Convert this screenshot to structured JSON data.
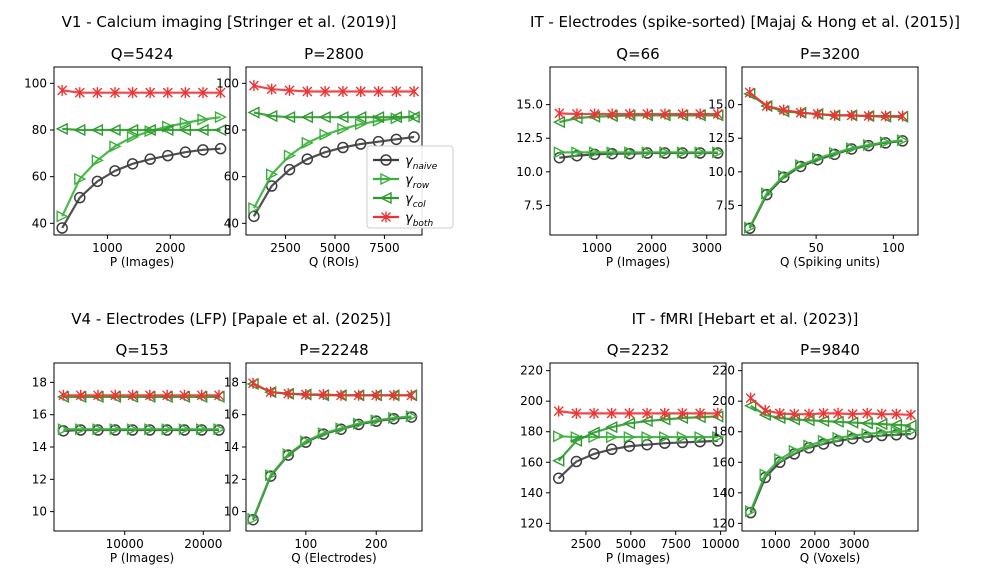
{
  "colors": {
    "naive": "#3d3d3d",
    "row": "#3cb03c",
    "col": "#2e9a2e",
    "both": "#ee3333",
    "axis": "#000000"
  },
  "legend": [
    {
      "key": "naive",
      "sym": "γ",
      "sub": "naive",
      "marker": "circle"
    },
    {
      "key": "row",
      "sym": "γ",
      "sub": "row",
      "marker": "tri-right"
    },
    {
      "key": "col",
      "sym": "γ",
      "sub": "col",
      "marker": "tri-left"
    },
    {
      "key": "both",
      "sym": "γ",
      "sub": "both",
      "marker": "x"
    }
  ],
  "chart_data": [
    {
      "type": "line",
      "group": "V1 - Calcium imaging [Stringer et al. (2019)]",
      "title": "Q=5424",
      "xlabel": "P (Images)",
      "xlim": [
        150,
        2950
      ],
      "ylim": [
        35,
        107
      ],
      "xticks": [
        1000,
        2000
      ],
      "yticks": [
        40,
        60,
        80,
        100
      ],
      "xtick_labels": [
        "1000",
        "2000"
      ],
      "ytick_labels": [
        "40",
        "60",
        "80",
        "100"
      ],
      "x": [
        280,
        560,
        840,
        1120,
        1400,
        1680,
        1960,
        2240,
        2520,
        2800
      ],
      "series": [
        {
          "name": "naive",
          "values": [
            38,
            51,
            58,
            62.5,
            65.5,
            67.5,
            69,
            70.5,
            71.5,
            72
          ]
        },
        {
          "name": "row",
          "values": [
            43,
            59,
            67,
            73,
            77,
            79.5,
            81.5,
            83,
            84.5,
            85.5
          ]
        },
        {
          "name": "col",
          "values": [
            80.5,
            80,
            80,
            80,
            80,
            80,
            80,
            80,
            80,
            80
          ]
        },
        {
          "name": "both",
          "values": [
            97,
            96,
            96,
            96,
            96,
            96,
            96,
            96,
            96,
            96
          ]
        }
      ]
    },
    {
      "type": "line",
      "group": "V1 - Calcium imaging [Stringer et al. (2019)]",
      "title": "P=2800",
      "xlabel": "Q (ROIs)",
      "xlim": [
        500,
        9400
      ],
      "ylim": [
        35,
        107
      ],
      "xticks": [
        2500,
        5000,
        7500
      ],
      "yticks": [
        40,
        60,
        80,
        100
      ],
      "xtick_labels": [
        "2500",
        "5000",
        "7500"
      ],
      "ytick_labels": [
        "40",
        "60",
        "80",
        "100"
      ],
      "x": [
        900,
        1800,
        2700,
        3600,
        4500,
        5400,
        6300,
        7200,
        8100,
        9000
      ],
      "series": [
        {
          "name": "naive",
          "values": [
            43,
            56,
            63,
            67.5,
            70.5,
            72.5,
            74,
            75,
            76,
            77
          ]
        },
        {
          "name": "row",
          "values": [
            46.5,
            61,
            69,
            74.5,
            78,
            80.5,
            82.5,
            84,
            85,
            86
          ]
        },
        {
          "name": "col",
          "values": [
            87.5,
            86,
            85.5,
            85.5,
            85.5,
            85.5,
            85.5,
            85.5,
            85.5,
            85.5
          ]
        },
        {
          "name": "both",
          "values": [
            99,
            97.5,
            97,
            96.5,
            96.5,
            96.5,
            96.5,
            96.5,
            96.5,
            96.5
          ]
        }
      ]
    },
    {
      "type": "line",
      "group": "IT - Electrodes (spike-sorted) [Majaj & Hong et al. (2015)]",
      "title": "Q=66",
      "xlabel": "P (Images)",
      "xlim": [
        150,
        3350
      ],
      "ylim": [
        5.3,
        17.8
      ],
      "xticks": [
        1000,
        2000,
        3000
      ],
      "yticks": [
        7.5,
        10,
        12.5,
        15
      ],
      "xtick_labels": [
        "1000",
        "2000",
        "3000"
      ],
      "ytick_labels": [
        "7.5",
        "10.0",
        "12.5",
        "15.0"
      ],
      "x": [
        320,
        640,
        960,
        1280,
        1600,
        1920,
        2240,
        2560,
        2880,
        3200
      ],
      "series": [
        {
          "name": "naive",
          "values": [
            11.05,
            11.2,
            11.3,
            11.35,
            11.35,
            11.4,
            11.4,
            11.4,
            11.4,
            11.4
          ]
        },
        {
          "name": "row",
          "values": [
            11.45,
            11.45,
            11.45,
            11.45,
            11.45,
            11.45,
            11.45,
            11.45,
            11.45,
            11.45
          ]
        },
        {
          "name": "col",
          "values": [
            13.7,
            14.0,
            14.1,
            14.15,
            14.2,
            14.2,
            14.2,
            14.2,
            14.2,
            14.2
          ]
        },
        {
          "name": "both",
          "values": [
            14.35,
            14.3,
            14.3,
            14.3,
            14.3,
            14.3,
            14.3,
            14.3,
            14.3,
            14.3
          ]
        }
      ]
    },
    {
      "type": "line",
      "group": "IT - Electrodes (spike-sorted) [Majaj & Hong et al. (2015)]",
      "title": "P=3200",
      "xlabel": "Q (Spiking units)",
      "xlim": [
        2,
        116
      ],
      "ylim": [
        5.3,
        17.8
      ],
      "xticks": [
        50,
        100
      ],
      "yticks": [
        7.5,
        10,
        12.5,
        15
      ],
      "xtick_labels": [
        "50",
        "100"
      ],
      "ytick_labels": [
        "7.5",
        "10.0",
        "12.5",
        "15.0"
      ],
      "x": [
        7,
        18,
        29,
        40,
        51,
        62,
        73,
        84,
        95,
        106
      ],
      "series": [
        {
          "name": "naive",
          "values": [
            5.8,
            8.3,
            9.6,
            10.4,
            10.9,
            11.3,
            11.7,
            11.95,
            12.15,
            12.3
          ]
        },
        {
          "name": "row",
          "values": [
            5.85,
            8.4,
            9.7,
            10.5,
            11.0,
            11.4,
            11.75,
            12.0,
            12.2,
            12.35
          ]
        },
        {
          "name": "col",
          "values": [
            15.8,
            14.9,
            14.5,
            14.4,
            14.3,
            14.2,
            14.2,
            14.15,
            14.1,
            14.1
          ]
        },
        {
          "name": "both",
          "values": [
            15.9,
            14.9,
            14.6,
            14.4,
            14.3,
            14.2,
            14.2,
            14.15,
            14.15,
            14.15
          ]
        }
      ]
    },
    {
      "type": "line",
      "group": "V4 - Electrodes (LFP) [Papale et al. (2025)]",
      "title": "Q=153",
      "xlabel": "P (Images)",
      "xlim": [
        1000,
        23400
      ],
      "ylim": [
        8.8,
        19.2
      ],
      "xticks": [
        10000,
        20000
      ],
      "yticks": [
        10,
        12,
        14,
        16,
        18
      ],
      "xtick_labels": [
        "10000",
        "20000"
      ],
      "ytick_labels": [
        "10",
        "12",
        "14",
        "16",
        "18"
      ],
      "x": [
        2200,
        4400,
        6600,
        8800,
        11000,
        13200,
        15400,
        17600,
        19800,
        22000
      ],
      "series": [
        {
          "name": "naive",
          "values": [
            15.0,
            15.05,
            15.05,
            15.05,
            15.05,
            15.05,
            15.05,
            15.05,
            15.05,
            15.05
          ]
        },
        {
          "name": "row",
          "values": [
            15.1,
            15.1,
            15.1,
            15.1,
            15.1,
            15.1,
            15.1,
            15.1,
            15.1,
            15.1
          ]
        },
        {
          "name": "col",
          "values": [
            17.1,
            17.1,
            17.1,
            17.1,
            17.1,
            17.1,
            17.1,
            17.1,
            17.1,
            17.1
          ]
        },
        {
          "name": "both",
          "values": [
            17.2,
            17.2,
            17.2,
            17.2,
            17.2,
            17.2,
            17.2,
            17.2,
            17.2,
            17.2
          ]
        }
      ]
    },
    {
      "type": "line",
      "group": "V4 - Electrodes (LFP) [Papale et al. (2025)]",
      "title": "P=22248",
      "xlabel": "Q (Electrodes)",
      "xlim": [
        15,
        265
      ],
      "ylim": [
        8.8,
        19.2
      ],
      "xticks": [
        100,
        200
      ],
      "yticks": [
        10,
        12,
        14,
        16,
        18
      ],
      "xtick_labels": [
        "100",
        "200"
      ],
      "ytick_labels": [
        "10",
        "12",
        "14",
        "16",
        "18"
      ],
      "x": [
        25,
        50,
        75,
        100,
        125,
        150,
        175,
        200,
        225,
        250
      ],
      "series": [
        {
          "name": "naive",
          "values": [
            9.5,
            12.2,
            13.5,
            14.3,
            14.8,
            15.1,
            15.4,
            15.6,
            15.75,
            15.85
          ]
        },
        {
          "name": "row",
          "values": [
            9.55,
            12.25,
            13.55,
            14.35,
            14.85,
            15.15,
            15.45,
            15.65,
            15.8,
            15.9
          ]
        },
        {
          "name": "col",
          "values": [
            17.9,
            17.4,
            17.3,
            17.25,
            17.2,
            17.2,
            17.2,
            17.2,
            17.2,
            17.2
          ]
        },
        {
          "name": "both",
          "values": [
            17.95,
            17.4,
            17.3,
            17.25,
            17.25,
            17.2,
            17.2,
            17.2,
            17.2,
            17.2
          ]
        }
      ]
    },
    {
      "type": "line",
      "group": "IT - fMRI [Hebart et al. (2023)]",
      "title": "Q=2232",
      "xlabel": "P (Images)",
      "xlim": [
        500,
        10300
      ],
      "ylim": [
        115,
        225
      ],
      "xticks": [
        2500,
        5000,
        7500,
        10000
      ],
      "yticks": [
        120,
        140,
        160,
        180,
        200,
        220
      ],
      "xtick_labels": [
        "2500",
        "5000",
        "7500",
        "10000"
      ],
      "ytick_labels": [
        "120",
        "140",
        "160",
        "180",
        "200",
        "220"
      ],
      "x": [
        984,
        1968,
        2952,
        3936,
        4920,
        5904,
        6888,
        7872,
        8856,
        9840
      ],
      "series": [
        {
          "name": "naive",
          "values": [
            149.5,
            160.5,
            165.5,
            168.5,
            170.5,
            171.5,
            172.5,
            173,
            173.5,
            174
          ]
        },
        {
          "name": "row",
          "values": [
            177,
            176.5,
            176.5,
            176.5,
            176.5,
            176.5,
            176.5,
            176.5,
            176.5,
            176.5
          ]
        },
        {
          "name": "col",
          "values": [
            161,
            174,
            179.5,
            183,
            185.5,
            187,
            188,
            189,
            189.5,
            190
          ]
        },
        {
          "name": "both",
          "values": [
            193.5,
            192,
            192,
            192,
            192,
            192,
            192,
            192,
            192,
            192
          ]
        }
      ]
    },
    {
      "type": "line",
      "group": "IT - fMRI [Hebart et al. (2023)]",
      "title": "P=9840",
      "xlabel": "Q (Voxels)",
      "xlim": [
        150,
        4620
      ],
      "ylim": [
        115,
        225
      ],
      "xticks": [
        1000,
        2000,
        3000
      ],
      "yticks": [
        120,
        140,
        160,
        180,
        200,
        220
      ],
      "xtick_labels": [
        "1000",
        "2000",
        "3000"
      ],
      "ytick_labels": [
        "120",
        "140",
        "160",
        "180",
        "200",
        "220"
      ],
      "x": [
        370,
        740,
        1110,
        1480,
        1850,
        2220,
        2590,
        2960,
        3330,
        3700,
        4070,
        4440
      ],
      "series": [
        {
          "name": "naive",
          "values": [
            127,
            150,
            160,
            165.5,
            169.5,
            172,
            174,
            175.5,
            176.5,
            177.5,
            178,
            178.5
          ]
        },
        {
          "name": "row",
          "values": [
            128,
            152,
            162,
            167.5,
            171,
            174,
            176,
            177.5,
            178.5,
            179.5,
            180,
            180.5
          ]
        },
        {
          "name": "col",
          "values": [
            197,
            191,
            189,
            188,
            187.5,
            187,
            186.5,
            186,
            185.5,
            185,
            184.5,
            184
          ]
        },
        {
          "name": "both",
          "values": [
            202,
            194,
            192,
            191.5,
            191.5,
            192,
            192,
            191.5,
            192,
            191.5,
            191.5,
            191
          ]
        }
      ]
    }
  ]
}
